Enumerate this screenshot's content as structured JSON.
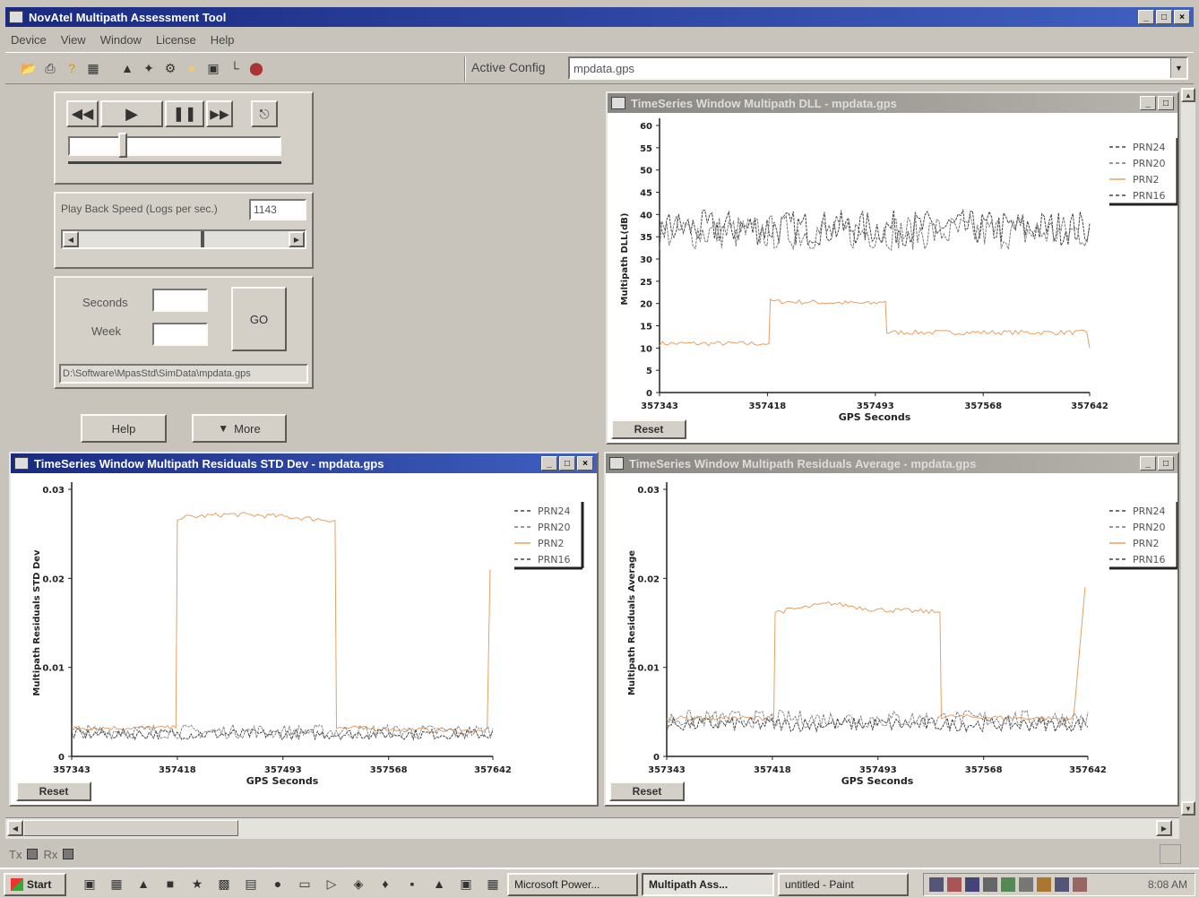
{
  "app": {
    "title": "NovAtel Multipath Assessment Tool"
  },
  "menu": [
    "Device",
    "View",
    "Window",
    "License",
    "Help"
  ],
  "toolbar": {
    "icons": [
      "open-icon",
      "print-icon",
      "help-icon",
      "film-icon",
      "ship-icon",
      "satellite-icon",
      "gear-icon",
      "bulb-icon",
      "monitor-icon",
      "chart-icon",
      "stop-icon"
    ],
    "active_config_label": "Active Config",
    "active_config_value": "mpdata.gps"
  },
  "playback": {
    "speed_label": "Play Back Speed (Logs per sec.)",
    "speed_value": "1143",
    "seconds_label": "Seconds",
    "week_label": "Week",
    "go_label": "GO",
    "file_path": "D:\\Software\\MpasStd\\SimData\\mpdata.gps",
    "help_label": "Help",
    "more_label": "More"
  },
  "windows": {
    "dll": {
      "title": "TimeSeries Window Multipath DLL - mpdata.gps",
      "reset": "Reset"
    },
    "std": {
      "title": "TimeSeries Window Multipath Residuals STD Dev - mpdata.gps",
      "reset": "Reset"
    },
    "avg": {
      "title": "TimeSeries Window Multipath Residuals Average - mpdata.gps",
      "reset": "Reset"
    }
  },
  "chart_data": [
    {
      "type": "line",
      "xlabel": "GPS Seconds",
      "ylabel": "Multipath DLL(dB)",
      "xlim": [
        357343,
        357642
      ],
      "ylim": [
        0,
        60
      ],
      "xticks": [
        "357343",
        "357418",
        "357493",
        "357568",
        "357642"
      ],
      "yticks": [
        "0",
        "5",
        "10",
        "15",
        "20",
        "25",
        "30",
        "35",
        "40",
        "45",
        "50",
        "55",
        "60"
      ],
      "legend": [
        "PRN24",
        "PRN20",
        "PRN2",
        "PRN16"
      ],
      "legend_placement": "top-right",
      "series": [
        {
          "name": "PRN2",
          "color": "#e8a060",
          "x": [
            357343,
            357419,
            357420,
            357490,
            357500,
            357501,
            357640,
            357642
          ],
          "y": [
            11,
            11,
            20.5,
            20,
            20.5,
            13.5,
            13.5,
            10
          ]
        },
        {
          "name": "PRN24",
          "color": "#444444",
          "noise": {
            "mean": 37,
            "spread": 4
          }
        },
        {
          "name": "PRN20",
          "color": "#777777",
          "noise": {
            "mean": 36,
            "spread": 4
          }
        }
      ]
    },
    {
      "type": "line",
      "xlabel": "GPS Seconds",
      "ylabel": "Multipath Residuals STD Dev",
      "xlim": [
        357343,
        357642
      ],
      "ylim": [
        0,
        0.03
      ],
      "xticks": [
        "357343",
        "357418",
        "357493",
        "357568",
        "357642"
      ],
      "yticks": [
        "0",
        "0.01",
        "0.02",
        "0.03"
      ],
      "legend": [
        "PRN24",
        "PRN20",
        "PRN2",
        "PRN16"
      ],
      "legend_placement": "top-right",
      "series": [
        {
          "name": "PRN2",
          "color": "#e8a060",
          "x": [
            357343,
            357417,
            357418,
            357455,
            357488,
            357530,
            357531,
            357635,
            357638,
            357640
          ],
          "y": [
            0.0032,
            0.0032,
            0.0268,
            0.0272,
            0.027,
            0.0265,
            0.0032,
            0.0028,
            0.0032,
            0.021
          ]
        },
        {
          "name": "PRN24",
          "color": "#444444",
          "noise": {
            "mean": 0.0025,
            "spread": 0.0006
          }
        },
        {
          "name": "PRN20",
          "color": "#888888",
          "noise": {
            "mean": 0.0028,
            "spread": 0.0008
          }
        }
      ]
    },
    {
      "type": "line",
      "xlabel": "GPS Seconds",
      "ylabel": "Multipath Residuals Average",
      "xlim": [
        357343,
        357642
      ],
      "ylim": [
        0,
        0.03
      ],
      "xticks": [
        "357343",
        "357418",
        "357493",
        "357568",
        "357642"
      ],
      "yticks": [
        "0",
        "0.01",
        "0.02",
        "0.03"
      ],
      "legend": [
        "PRN24",
        "PRN20",
        "PRN2",
        "PRN16"
      ],
      "legend_placement": "top-right",
      "series": [
        {
          "name": "PRN2",
          "color": "#e8a060",
          "x": [
            357343,
            357419,
            357420,
            357460,
            357490,
            357537,
            357538,
            357630,
            357632,
            357640
          ],
          "y": [
            0.0043,
            0.0043,
            0.0162,
            0.0172,
            0.0165,
            0.0162,
            0.0045,
            0.0042,
            0.0045,
            0.019
          ]
        },
        {
          "name": "PRN24",
          "color": "#444444",
          "noise": {
            "mean": 0.0036,
            "spread": 0.0008
          }
        },
        {
          "name": "PRN20",
          "color": "#888888",
          "noise": {
            "mean": 0.0042,
            "spread": 0.001
          }
        }
      ]
    }
  ],
  "statusbar": {
    "tx": "Tx",
    "rx": "Rx"
  },
  "taskbar": {
    "start": "Start",
    "tasks": [
      "Microsoft Power...",
      "Multipath Ass...",
      "untitled - Paint"
    ],
    "clock": "8:08 AM"
  }
}
